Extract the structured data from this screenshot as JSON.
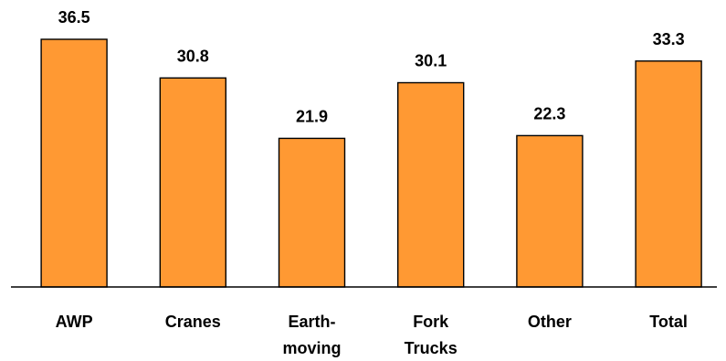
{
  "chart_data": {
    "type": "bar",
    "categories": [
      [
        "AWP"
      ],
      [
        "Cranes"
      ],
      [
        "Earth-",
        "moving"
      ],
      [
        "Fork",
        "Trucks"
      ],
      [
        "Other"
      ],
      [
        "Total"
      ]
    ],
    "values": [
      36.5,
      30.8,
      21.9,
      30.1,
      22.3,
      33.3
    ],
    "value_labels": [
      "36.5",
      "30.8",
      "21.9",
      "30.1",
      "22.3",
      "33.3"
    ],
    "title": "",
    "xlabel": "",
    "ylabel": "",
    "ylim": [
      0,
      36.5
    ],
    "grid": false,
    "legend": "none",
    "colors": {
      "bar_fill": "#FF9933",
      "bar_stroke": "#000000",
      "axis": "#000000"
    }
  }
}
